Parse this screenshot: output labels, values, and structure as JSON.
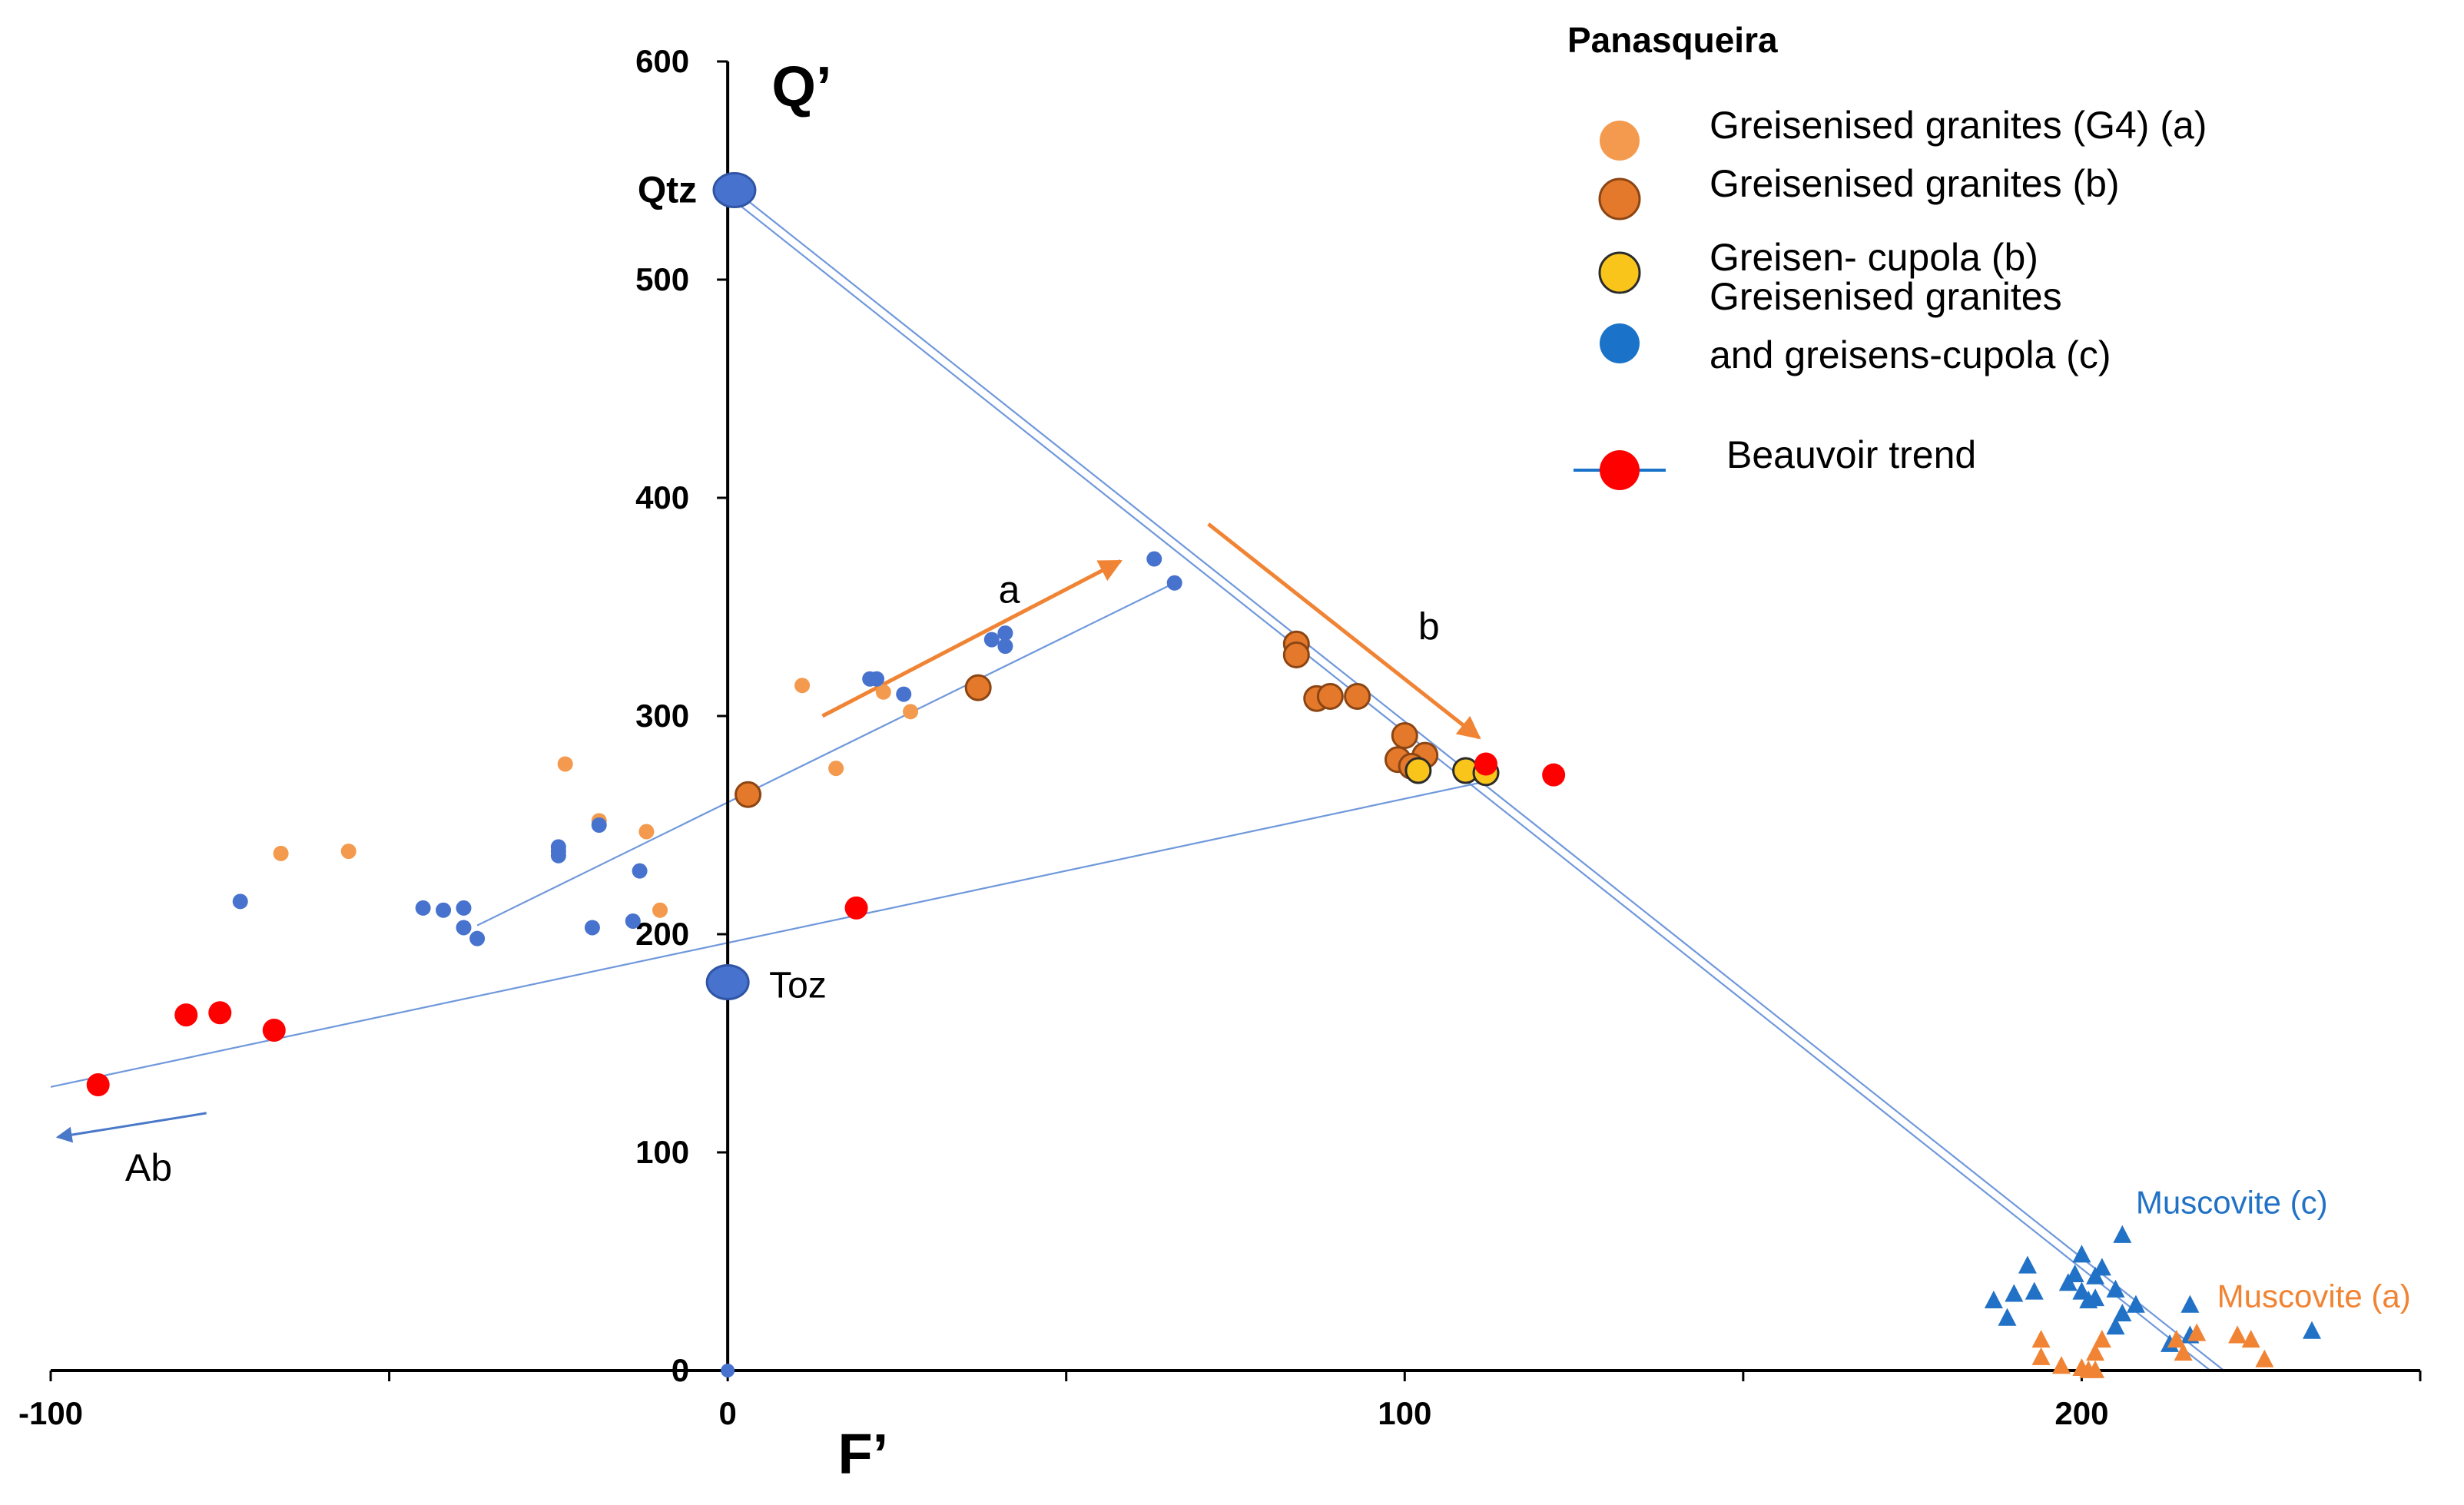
{
  "chart_data": {
    "type": "scatter",
    "title": "",
    "xlabel": "F’",
    "ylabel": "Q’",
    "xlim": [
      -100,
      250
    ],
    "ylim": [
      0,
      600
    ],
    "x_ticks": [
      -100,
      0,
      100,
      200
    ],
    "y_ticks": [
      0,
      100,
      200,
      300,
      400,
      500,
      600
    ],
    "grid": false,
    "colors": {
      "light_orange": "#F39A4E",
      "orange": "#E4792B",
      "yellow": "#F9C51B",
      "blue": "#4772CE",
      "red": "#FF0000",
      "line": "#6F98DB",
      "legend_blue": "#1A73C9",
      "muscovite_c": "#2172C6",
      "muscovite_a": "#F08434"
    },
    "legend": {
      "title": "Panasqueira",
      "position": "top-right",
      "entries": [
        {
          "label": "Greisenised granites (G4) (a)",
          "series": "g4"
        },
        {
          "label": "Greisenised granites (b)",
          "series": "gb"
        },
        {
          "label": "Greisen- cupola (b)",
          "series": "cupola"
        },
        {
          "label_lines": [
            "Greisenised granites",
            "and greisens-cupola (c)"
          ],
          "series": "c"
        },
        {
          "label": "Beauvoir trend",
          "series": "beauvoir"
        }
      ]
    },
    "series": [
      {
        "name": "Greisenised granites (G4) (a)",
        "key": "g4",
        "marker": "circle",
        "color": "#F39A4E",
        "size": "small",
        "points": [
          [
            -66,
            237
          ],
          [
            -56,
            238
          ],
          [
            -24,
            278
          ],
          [
            -19,
            252
          ],
          [
            -12,
            247
          ],
          [
            -10,
            211
          ],
          [
            11,
            314
          ],
          [
            16,
            276
          ],
          [
            23,
            311
          ],
          [
            27,
            302
          ]
        ]
      },
      {
        "name": "Greisenised granites (b)",
        "key": "gb",
        "marker": "circle-outlined",
        "color": "#E4792B",
        "size": "medium",
        "points": [
          [
            3,
            264
          ],
          [
            37,
            313
          ],
          [
            84,
            333
          ],
          [
            84,
            328
          ],
          [
            87,
            308
          ],
          [
            89,
            309
          ],
          [
            93,
            309
          ],
          [
            100,
            291
          ],
          [
            99,
            280
          ],
          [
            103,
            282
          ],
          [
            101,
            277
          ]
        ]
      },
      {
        "name": "Greisen- cupola (b)",
        "key": "cupola",
        "marker": "circle-outlined",
        "color": "#F9C51B",
        "size": "medium",
        "points": [
          [
            102,
            275
          ],
          [
            109,
            275
          ],
          [
            112,
            274
          ]
        ]
      },
      {
        "name": "Greisenised granites and greisens-cupola (c)",
        "key": "c",
        "marker": "circle",
        "color": "#4772CE",
        "size": "small",
        "points": [
          [
            -72,
            215
          ],
          [
            -45,
            212
          ],
          [
            -42,
            211
          ],
          [
            -39,
            212
          ],
          [
            -39,
            203
          ],
          [
            -37,
            198
          ],
          [
            -25,
            238
          ],
          [
            -25,
            240
          ],
          [
            -25,
            236
          ],
          [
            -19,
            250
          ],
          [
            -14,
            206
          ],
          [
            -13,
            229
          ],
          [
            -20,
            203
          ],
          [
            21,
            317
          ],
          [
            22,
            317
          ],
          [
            26,
            310
          ],
          [
            39,
            335
          ],
          [
            41,
            338
          ],
          [
            41,
            332
          ],
          [
            63,
            372
          ],
          [
            66,
            361
          ]
        ]
      },
      {
        "name": "Beauvoir trend",
        "key": "beauvoir",
        "marker": "circle",
        "color": "#FF0000",
        "size": "medium",
        "points": [
          [
            -93,
            131
          ],
          [
            -80,
            163
          ],
          [
            -75,
            164
          ],
          [
            -67,
            156
          ],
          [
            19,
            212
          ],
          [
            112,
            278
          ],
          [
            122,
            273
          ]
        ]
      },
      {
        "name": "Muscovite (c)",
        "key": "musc_c",
        "marker": "triangle",
        "color": "#2172C6",
        "points": [
          [
            187,
            32
          ],
          [
            189,
            24
          ],
          [
            190,
            35
          ],
          [
            192,
            48
          ],
          [
            193,
            36
          ],
          [
            198,
            40
          ],
          [
            200,
            53
          ],
          [
            200,
            36
          ],
          [
            201,
            32
          ],
          [
            202,
            43
          ],
          [
            203,
            47
          ],
          [
            205,
            37
          ],
          [
            206,
            26
          ],
          [
            205,
            20
          ],
          [
            206,
            62
          ],
          [
            208,
            30
          ],
          [
            213,
            12
          ],
          [
            216,
            30
          ],
          [
            216,
            16
          ],
          [
            234,
            18
          ],
          [
            199,
            44
          ],
          [
            202,
            33
          ]
        ]
      },
      {
        "name": "Muscovite (a)",
        "key": "musc_a",
        "marker": "triangle",
        "color": "#F08434",
        "points": [
          [
            194,
            14
          ],
          [
            194,
            6
          ],
          [
            197,
            2
          ],
          [
            200,
            1
          ],
          [
            201,
            0
          ],
          [
            202,
            8
          ],
          [
            203,
            14
          ],
          [
            202,
            0
          ],
          [
            214,
            14
          ],
          [
            215,
            8
          ],
          [
            217,
            17
          ],
          [
            223,
            16
          ],
          [
            225,
            14
          ],
          [
            227,
            5
          ]
        ]
      }
    ],
    "endmembers": [
      {
        "label": "Qtz",
        "x": 1,
        "y": 541
      },
      {
        "label": "Toz",
        "x": 0,
        "y": 178
      }
    ],
    "trend_lines": [
      {
        "name": "Qtz to muscovite (upper)",
        "from": [
          1,
          541
        ],
        "to": [
          221,
          0
        ]
      },
      {
        "name": "Qtz to muscovite (lower)",
        "from": [
          1,
          536
        ],
        "to": [
          219,
          0
        ]
      },
      {
        "name": "Beauvoir trend line",
        "from": [
          -100,
          130
        ],
        "to": [
          112,
          270
        ]
      },
      {
        "name": "Panasqueira trend",
        "from": [
          -37,
          204
        ],
        "to": [
          66,
          361
        ]
      }
    ],
    "arrows": [
      {
        "label": "a",
        "from": [
          14,
          300
        ],
        "to": [
          58,
          371
        ],
        "color": "#F08434"
      },
      {
        "label": "b",
        "from": [
          71,
          388
        ],
        "to": [
          111,
          290
        ],
        "color": "#F08434"
      },
      {
        "label": "Ab",
        "from": [
          -77,
          118
        ],
        "to": [
          -99,
          107
        ],
        "color": "#4A78C8"
      }
    ],
    "annotations": [
      {
        "text": "a",
        "x": 40,
        "y": 352
      },
      {
        "text": "b",
        "x": 102,
        "y": 335
      },
      {
        "text": "Ab",
        "x": -89,
        "y": 87
      },
      {
        "text": "Muscovite (c)",
        "x": 208,
        "y": 72,
        "color": "#2172C6"
      },
      {
        "text": "Muscovite (a)",
        "x": 220,
        "y": 29,
        "color": "#F08434"
      }
    ]
  }
}
